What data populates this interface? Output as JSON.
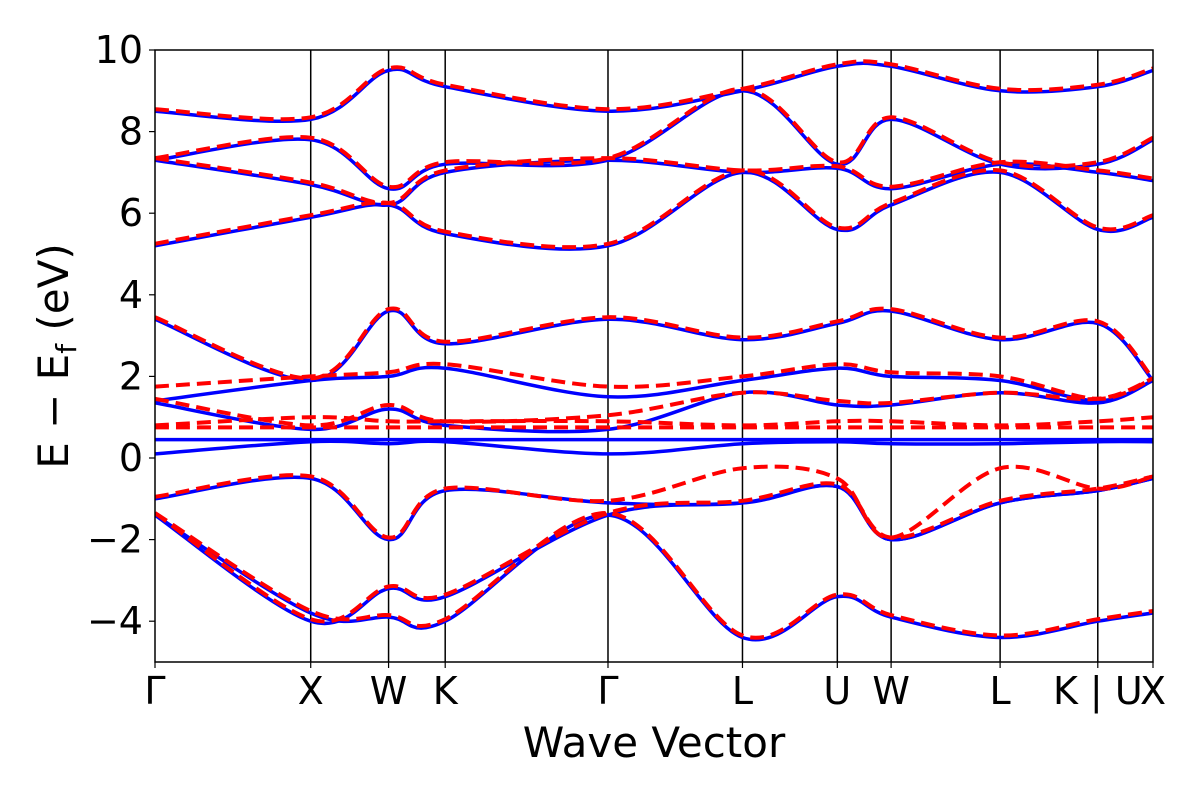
{
  "chart_data": {
    "type": "line",
    "xlabel": "Wave Vector",
    "ylabel_parts": {
      "main": "E − E",
      "sub": "f",
      "unit": " (eV)"
    },
    "ylim": [
      -5,
      10
    ],
    "yticks": [
      10,
      8,
      6,
      4,
      2,
      0,
      -2,
      -4
    ],
    "ytick_labels": [
      "10",
      "8",
      "6",
      "4",
      "2",
      "0",
      "−2",
      "−4"
    ],
    "xlim": [
      0,
      11.0
    ],
    "high_symmetry_points": [
      {
        "label": "Γ",
        "x": 0.0
      },
      {
        "label": "X",
        "x": 1.1
      },
      {
        "label": "W",
        "x": 1.65
      },
      {
        "label": "K",
        "x": 2.05
      },
      {
        "label": "Γ",
        "x": 3.2
      },
      {
        "label": "L",
        "x": 4.15
      },
      {
        "label": "U",
        "x": 4.82
      },
      {
        "label": "W",
        "x": 5.2
      },
      {
        "label": "L",
        "x": 5.97
      },
      {
        "label": "K | U",
        "x": 6.66
      },
      {
        "label": "X",
        "x": 7.05
      }
    ],
    "series": [
      {
        "style": "solid",
        "color": "#0000ff",
        "bands": [
          {
            "x": [
              0,
              1.1,
              1.65,
              2.05,
              3.2,
              4.15,
              4.82,
              5.2,
              5.97,
              6.66,
              7.05
            ],
            "y": [
              -1.4,
              -3.8,
              -3.9,
              -4.0,
              -1.4,
              -4.4,
              -3.4,
              -3.9,
              -4.4,
              -4.0,
              -3.8
            ]
          },
          {
            "x": [
              0,
              1.1,
              1.65,
              2.05,
              3.2,
              4.15,
              4.82,
              5.2,
              5.97,
              6.66,
              7.05
            ],
            "y": [
              -1.4,
              -4.0,
              -3.2,
              -3.4,
              -1.4,
              -1.1,
              -0.7,
              -2.0,
              -1.1,
              -0.8,
              -0.5
            ]
          },
          {
            "x": [
              0,
              1.1,
              1.65,
              2.05,
              3.2,
              4.15,
              4.82,
              5.2,
              5.97,
              6.66,
              7.05
            ],
            "y": [
              -1.0,
              -0.5,
              -2.0,
              -0.8,
              -1.1,
              -1.1,
              -0.7,
              -2.0,
              -1.1,
              -0.8,
              -0.5
            ]
          },
          {
            "x": [
              0,
              1.1,
              1.65,
              2.05,
              3.2,
              4.15,
              4.82,
              5.2,
              5.97,
              6.66,
              7.05
            ],
            "y": [
              0.1,
              0.4,
              0.35,
              0.4,
              0.1,
              0.35,
              0.4,
              0.35,
              0.35,
              0.4,
              0.4
            ]
          },
          {
            "x": [
              0,
              1.1,
              1.65,
              2.05,
              3.2,
              4.15,
              4.82,
              5.2,
              5.97,
              6.66,
              7.05
            ],
            "y": [
              0.45,
              0.45,
              0.45,
              0.45,
              0.45,
              0.45,
              0.45,
              0.45,
              0.45,
              0.45,
              0.45
            ]
          },
          {
            "x": [
              0,
              1.1,
              1.65,
              2.05,
              3.2,
              4.15,
              4.82,
              5.2,
              5.97,
              6.66,
              7.05
            ],
            "y": [
              1.35,
              0.7,
              1.2,
              0.8,
              0.7,
              1.6,
              1.3,
              1.3,
              1.6,
              1.35,
              1.9
            ]
          },
          {
            "x": [
              0,
              1.1,
              1.65,
              2.05,
              3.2,
              4.15,
              4.82,
              5.2,
              5.97,
              6.66,
              7.05
            ],
            "y": [
              1.4,
              1.9,
              2.0,
              2.2,
              1.5,
              1.9,
              2.2,
              2.0,
              1.9,
              1.4,
              1.9
            ]
          },
          {
            "x": [
              0,
              1.1,
              1.65,
              2.05,
              3.2,
              4.15,
              4.82,
              5.2,
              5.97,
              6.66,
              7.05
            ],
            "y": [
              3.4,
              1.9,
              3.6,
              2.8,
              3.4,
              2.9,
              3.3,
              3.6,
              2.9,
              3.3,
              1.9
            ]
          },
          {
            "x": [
              0,
              1.1,
              1.65,
              2.05,
              3.2,
              4.15,
              4.82,
              5.2,
              5.97,
              6.66,
              7.05
            ],
            "y": [
              5.2,
              5.9,
              6.2,
              5.5,
              5.2,
              7.0,
              5.6,
              6.2,
              7.0,
              5.6,
              5.9
            ]
          },
          {
            "x": [
              0,
              1.1,
              1.65,
              2.05,
              3.2,
              4.15,
              4.82,
              5.2,
              5.97,
              6.66,
              7.05
            ],
            "y": [
              7.3,
              6.7,
              6.2,
              7.0,
              7.3,
              7.0,
              7.1,
              6.6,
              7.2,
              7.0,
              6.8
            ]
          },
          {
            "x": [
              0,
              1.1,
              1.65,
              2.05,
              3.2,
              4.15,
              4.82,
              5.2,
              5.97,
              6.66,
              7.05
            ],
            "y": [
              7.3,
              7.8,
              6.6,
              7.2,
              7.3,
              9.0,
              7.2,
              8.3,
              7.2,
              7.2,
              7.8
            ]
          },
          {
            "x": [
              0,
              1.1,
              1.65,
              2.05,
              3.2,
              4.15,
              4.82,
              5.2,
              5.97,
              6.66,
              7.05
            ],
            "y": [
              8.5,
              8.3,
              9.5,
              9.1,
              8.5,
              9.0,
              9.6,
              9.6,
              9.0,
              9.1,
              9.5
            ]
          }
        ]
      },
      {
        "style": "dashed",
        "color": "#ff0000",
        "bands": [
          {
            "x": [
              0,
              1.1,
              1.65,
              2.05,
              3.2,
              4.15,
              4.82,
              5.2,
              5.97,
              6.66,
              7.05
            ],
            "y": [
              -1.35,
              -3.75,
              -3.85,
              -3.95,
              -1.35,
              -4.35,
              -3.35,
              -3.85,
              -4.35,
              -3.95,
              -3.75
            ]
          },
          {
            "x": [
              0,
              1.1,
              1.65,
              2.05,
              3.2,
              4.15,
              4.82,
              5.2,
              5.97,
              6.66,
              7.05
            ],
            "y": [
              -1.35,
              -3.95,
              -3.15,
              -3.35,
              -1.35,
              -1.05,
              -0.65,
              -1.95,
              -1.05,
              -0.75,
              -0.45
            ]
          },
          {
            "x": [
              0,
              1.1,
              1.65,
              2.05,
              3.2,
              4.15,
              4.82,
              5.2,
              5.97,
              6.66,
              7.05
            ],
            "y": [
              -0.95,
              -0.45,
              -1.95,
              -0.75,
              -1.05,
              -0.25,
              -0.5,
              -1.95,
              -0.25,
              -0.75,
              -0.45
            ]
          },
          {
            "x": [
              0,
              1.1,
              1.65,
              2.05,
              3.2,
              4.15,
              4.82,
              5.2,
              5.97,
              6.66,
              7.05
            ],
            "y": [
              0.75,
              0.75,
              0.75,
              0.75,
              0.75,
              0.75,
              0.75,
              0.75,
              0.75,
              0.75,
              0.75
            ]
          },
          {
            "x": [
              0,
              1.1,
              1.65,
              2.05,
              3.2,
              4.15,
              4.82,
              5.2,
              5.97,
              6.66,
              7.05
            ],
            "y": [
              0.8,
              1.0,
              0.9,
              0.9,
              0.9,
              0.8,
              0.9,
              0.9,
              0.8,
              0.9,
              1.0
            ]
          },
          {
            "x": [
              0,
              1.1,
              1.65,
              2.05,
              3.2,
              4.15,
              4.82,
              5.2,
              5.97,
              6.66,
              7.05
            ],
            "y": [
              1.45,
              0.8,
              1.3,
              0.9,
              1.05,
              1.6,
              1.4,
              1.35,
              1.6,
              1.45,
              1.95
            ]
          },
          {
            "x": [
              0,
              1.1,
              1.65,
              2.05,
              3.2,
              4.15,
              4.82,
              5.2,
              5.97,
              6.66,
              7.05
            ],
            "y": [
              1.75,
              2.0,
              2.1,
              2.3,
              1.75,
              2.0,
              2.3,
              2.1,
              2.0,
              1.45,
              1.95
            ]
          },
          {
            "x": [
              0,
              1.1,
              1.65,
              2.05,
              3.2,
              4.15,
              4.82,
              5.2,
              5.97,
              6.66,
              7.05
            ],
            "y": [
              3.45,
              1.95,
              3.65,
              2.85,
              3.45,
              2.95,
              3.35,
              3.65,
              2.95,
              3.35,
              1.95
            ]
          },
          {
            "x": [
              0,
              1.1,
              1.65,
              2.05,
              3.2,
              4.15,
              4.82,
              5.2,
              5.97,
              6.66,
              7.05
            ],
            "y": [
              5.25,
              5.95,
              6.25,
              5.55,
              5.25,
              7.05,
              5.65,
              6.25,
              7.05,
              5.65,
              5.95
            ]
          },
          {
            "x": [
              0,
              1.1,
              1.65,
              2.05,
              3.2,
              4.15,
              4.82,
              5.2,
              5.97,
              6.66,
              7.05
            ],
            "y": [
              7.35,
              6.75,
              6.25,
              7.05,
              7.35,
              7.05,
              7.15,
              6.65,
              7.25,
              7.05,
              6.85
            ]
          },
          {
            "x": [
              0,
              1.1,
              1.65,
              2.05,
              3.2,
              4.15,
              4.82,
              5.2,
              5.97,
              6.66,
              7.05
            ],
            "y": [
              7.35,
              7.85,
              6.65,
              7.25,
              7.35,
              9.05,
              7.25,
              8.35,
              7.25,
              7.25,
              7.85
            ]
          },
          {
            "x": [
              0,
              1.1,
              1.65,
              2.05,
              3.2,
              4.15,
              4.82,
              5.2,
              5.97,
              6.66,
              7.05
            ],
            "y": [
              8.55,
              8.35,
              9.55,
              9.15,
              8.55,
              9.05,
              9.65,
              9.65,
              9.05,
              9.15,
              9.55
            ]
          }
        ]
      }
    ],
    "grid": false,
    "legend": "none"
  }
}
